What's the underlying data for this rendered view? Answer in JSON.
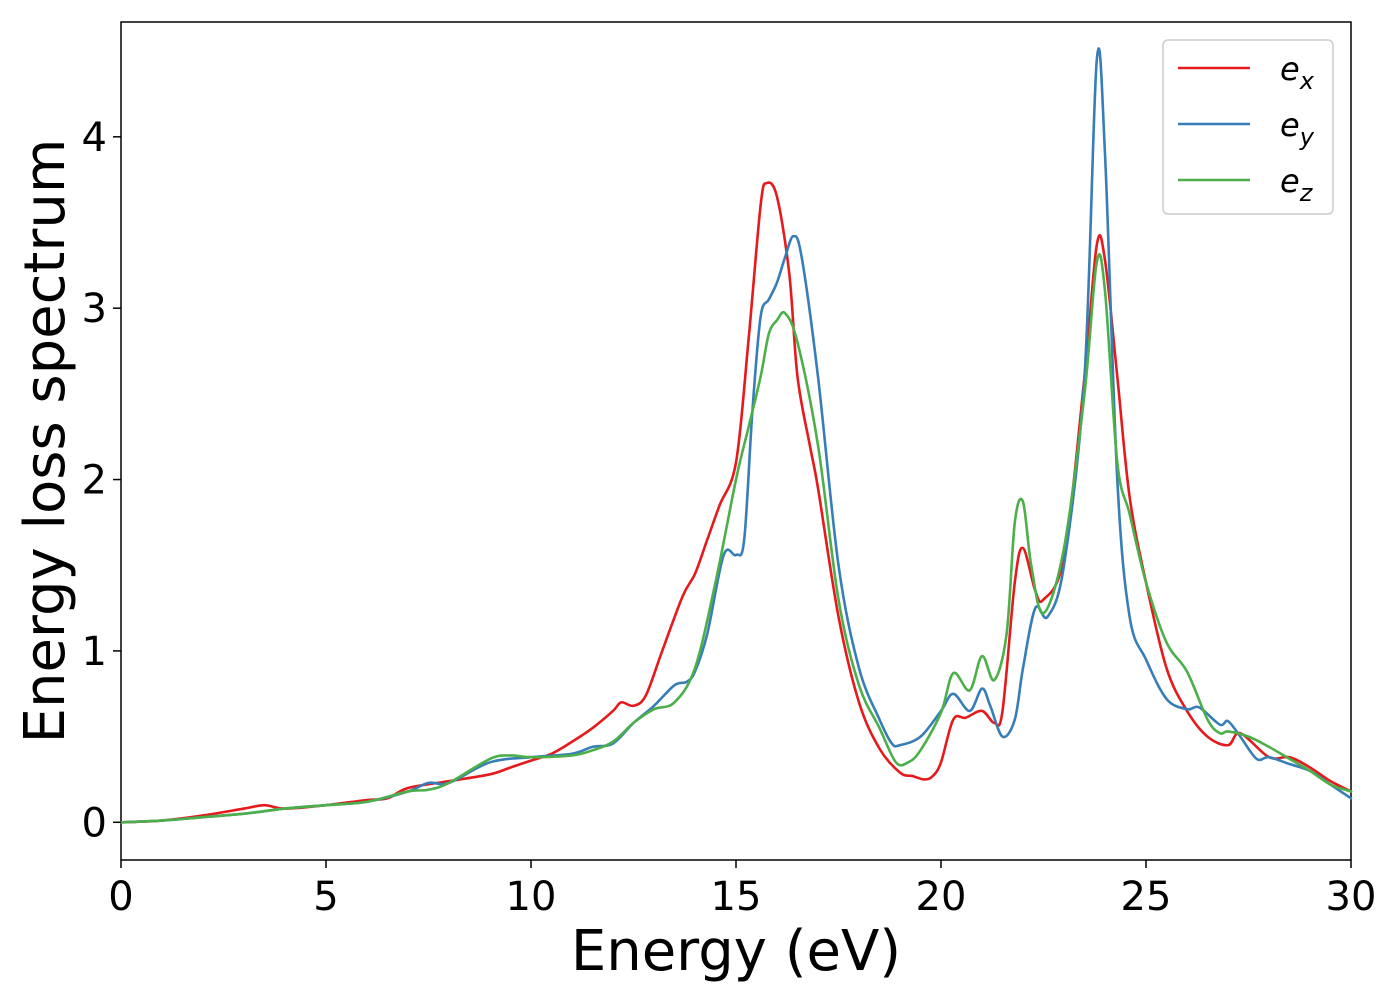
{
  "chart_data": {
    "type": "line",
    "title": "",
    "xlabel": "Energy (eV)",
    "ylabel": "Energy loss spectrum",
    "xlim": [
      0,
      30
    ],
    "ylim": [
      -0.22,
      4.67
    ],
    "xticks": [
      0,
      5,
      10,
      15,
      20,
      25,
      30
    ],
    "yticks": [
      0,
      1,
      2,
      3,
      4
    ],
    "grid": false,
    "legend_position": "top-right",
    "series": [
      {
        "name": "e",
        "subscript": "x",
        "color": "#e41a1c",
        "points": [
          [
            0,
            0
          ],
          [
            1,
            0.01
          ],
          [
            2,
            0.04
          ],
          [
            3,
            0.08
          ],
          [
            3.5,
            0.1
          ],
          [
            4,
            0.08
          ],
          [
            5,
            0.1
          ],
          [
            6,
            0.13
          ],
          [
            6.5,
            0.14
          ],
          [
            7,
            0.2
          ],
          [
            8,
            0.24
          ],
          [
            9,
            0.28
          ],
          [
            9.5,
            0.32
          ],
          [
            10,
            0.36
          ],
          [
            10.5,
            0.4
          ],
          [
            11,
            0.47
          ],
          [
            11.5,
            0.55
          ],
          [
            12,
            0.65
          ],
          [
            12.2,
            0.7
          ],
          [
            12.5,
            0.68
          ],
          [
            12.8,
            0.74
          ],
          [
            13.2,
            1.0
          ],
          [
            13.7,
            1.32
          ],
          [
            14,
            1.45
          ],
          [
            14.3,
            1.65
          ],
          [
            14.6,
            1.85
          ],
          [
            15,
            2.1
          ],
          [
            15.3,
            2.8
          ],
          [
            15.6,
            3.6
          ],
          [
            15.75,
            3.73
          ],
          [
            16,
            3.65
          ],
          [
            16.3,
            3.2
          ],
          [
            16.5,
            2.6
          ],
          [
            16.8,
            2.2
          ],
          [
            17,
            1.95
          ],
          [
            17.5,
            1.2
          ],
          [
            18,
            0.7
          ],
          [
            18.5,
            0.43
          ],
          [
            19,
            0.29
          ],
          [
            19.3,
            0.27
          ],
          [
            19.6,
            0.25
          ],
          [
            19.8,
            0.27
          ],
          [
            20,
            0.35
          ],
          [
            20.3,
            0.6
          ],
          [
            20.6,
            0.61
          ],
          [
            21,
            0.65
          ],
          [
            21.3,
            0.58
          ],
          [
            21.5,
            0.65
          ],
          [
            21.8,
            1.4
          ],
          [
            22,
            1.6
          ],
          [
            22.3,
            1.35
          ],
          [
            22.5,
            1.3
          ],
          [
            23,
            1.55
          ],
          [
            23.5,
            2.6
          ],
          [
            23.8,
            3.37
          ],
          [
            24,
            3.28
          ],
          [
            24.3,
            2.6
          ],
          [
            24.6,
            1.9
          ],
          [
            25,
            1.4
          ],
          [
            25.5,
            0.9
          ],
          [
            26,
            0.65
          ],
          [
            26.5,
            0.5
          ],
          [
            27,
            0.45
          ],
          [
            27.3,
            0.52
          ],
          [
            28,
            0.38
          ],
          [
            28.5,
            0.38
          ],
          [
            29,
            0.32
          ],
          [
            29.5,
            0.24
          ],
          [
            30,
            0.18
          ]
        ]
      },
      {
        "name": "e",
        "subscript": "y",
        "color": "#377eb8",
        "points": [
          [
            0,
            0
          ],
          [
            1,
            0.01
          ],
          [
            2,
            0.03
          ],
          [
            3,
            0.05
          ],
          [
            4,
            0.08
          ],
          [
            5,
            0.1
          ],
          [
            6,
            0.12
          ],
          [
            7,
            0.18
          ],
          [
            7.5,
            0.23
          ],
          [
            8,
            0.23
          ],
          [
            9,
            0.35
          ],
          [
            10,
            0.38
          ],
          [
            11,
            0.4
          ],
          [
            11.5,
            0.44
          ],
          [
            12,
            0.46
          ],
          [
            12.5,
            0.58
          ],
          [
            13,
            0.68
          ],
          [
            13.5,
            0.8
          ],
          [
            13.8,
            0.82
          ],
          [
            14,
            0.88
          ],
          [
            14.3,
            1.1
          ],
          [
            14.7,
            1.56
          ],
          [
            15,
            1.56
          ],
          [
            15.2,
            1.65
          ],
          [
            15.4,
            2.4
          ],
          [
            15.6,
            2.95
          ],
          [
            15.8,
            3.05
          ],
          [
            16,
            3.15
          ],
          [
            16.2,
            3.3
          ],
          [
            16.4,
            3.42
          ],
          [
            16.6,
            3.3
          ],
          [
            17,
            2.6
          ],
          [
            17.5,
            1.5
          ],
          [
            18,
            0.9
          ],
          [
            18.5,
            0.6
          ],
          [
            18.8,
            0.46
          ],
          [
            19,
            0.45
          ],
          [
            19.5,
            0.5
          ],
          [
            20,
            0.65
          ],
          [
            20.3,
            0.75
          ],
          [
            20.7,
            0.65
          ],
          [
            21,
            0.78
          ],
          [
            21.2,
            0.68
          ],
          [
            21.5,
            0.5
          ],
          [
            21.8,
            0.6
          ],
          [
            22,
            0.9
          ],
          [
            22.3,
            1.25
          ],
          [
            22.6,
            1.2
          ],
          [
            23,
            1.5
          ],
          [
            23.5,
            2.6
          ],
          [
            23.8,
            4.45
          ],
          [
            24,
            3.9
          ],
          [
            24.3,
            2.0
          ],
          [
            24.6,
            1.2
          ],
          [
            25,
            0.95
          ],
          [
            25.5,
            0.72
          ],
          [
            26,
            0.66
          ],
          [
            26.3,
            0.67
          ],
          [
            26.8,
            0.57
          ],
          [
            27,
            0.59
          ],
          [
            27.3,
            0.5
          ],
          [
            27.7,
            0.37
          ],
          [
            28,
            0.38
          ],
          [
            28.5,
            0.34
          ],
          [
            29,
            0.3
          ],
          [
            29.5,
            0.22
          ],
          [
            30,
            0.14
          ]
        ]
      },
      {
        "name": "e",
        "subscript": "z",
        "color": "#4daf4a",
        "points": [
          [
            0,
            0
          ],
          [
            1,
            0.01
          ],
          [
            2,
            0.03
          ],
          [
            3,
            0.05
          ],
          [
            4,
            0.08
          ],
          [
            5,
            0.1
          ],
          [
            6,
            0.12
          ],
          [
            7,
            0.18
          ],
          [
            7.5,
            0.19
          ],
          [
            8,
            0.23
          ],
          [
            9,
            0.37
          ],
          [
            9.5,
            0.39
          ],
          [
            10,
            0.38
          ],
          [
            11,
            0.39
          ],
          [
            11.5,
            0.42
          ],
          [
            12,
            0.47
          ],
          [
            12.5,
            0.58
          ],
          [
            13,
            0.66
          ],
          [
            13.5,
            0.7
          ],
          [
            14,
            0.9
          ],
          [
            14.5,
            1.4
          ],
          [
            15,
            2.0
          ],
          [
            15.3,
            2.3
          ],
          [
            15.6,
            2.6
          ],
          [
            15.8,
            2.85
          ],
          [
            16,
            2.93
          ],
          [
            16.2,
            2.97
          ],
          [
            16.5,
            2.8
          ],
          [
            17,
            2.2
          ],
          [
            17.5,
            1.3
          ],
          [
            18,
            0.8
          ],
          [
            18.5,
            0.55
          ],
          [
            18.9,
            0.35
          ],
          [
            19.2,
            0.35
          ],
          [
            19.5,
            0.42
          ],
          [
            20,
            0.64
          ],
          [
            20.3,
            0.87
          ],
          [
            20.7,
            0.77
          ],
          [
            21,
            0.97
          ],
          [
            21.3,
            0.83
          ],
          [
            21.6,
            1.1
          ],
          [
            21.8,
            1.75
          ],
          [
            22,
            1.87
          ],
          [
            22.2,
            1.5
          ],
          [
            22.5,
            1.22
          ],
          [
            23,
            1.6
          ],
          [
            23.5,
            2.5
          ],
          [
            23.8,
            3.27
          ],
          [
            24,
            3.1
          ],
          [
            24.3,
            2.1
          ],
          [
            24.6,
            1.8
          ],
          [
            25,
            1.4
          ],
          [
            25.5,
            1.05
          ],
          [
            26,
            0.88
          ],
          [
            26.5,
            0.6
          ],
          [
            26.8,
            0.52
          ],
          [
            27,
            0.53
          ],
          [
            27.5,
            0.5
          ],
          [
            28,
            0.44
          ],
          [
            28.5,
            0.37
          ],
          [
            29,
            0.3
          ],
          [
            29.5,
            0.22
          ],
          [
            30,
            0.18
          ]
        ]
      }
    ]
  }
}
